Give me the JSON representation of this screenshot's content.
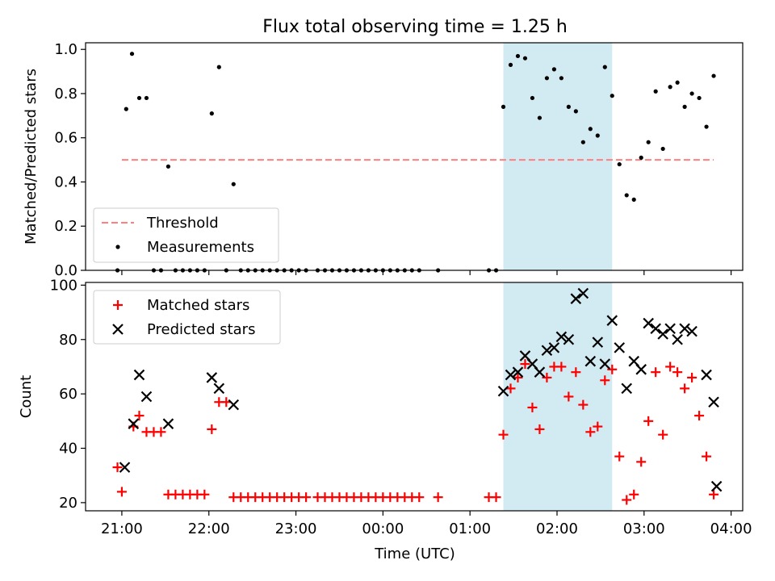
{
  "title": "Flux total observing time = 1.25 h",
  "chart_data": [
    {
      "type": "scatter",
      "panel": "top",
      "ylabel": "Matched/Predicted stars",
      "xlim": [
        "20:35",
        "04:08"
      ],
      "ylim": [
        0,
        1.03
      ],
      "yticks": [
        0.0,
        0.2,
        0.4,
        0.6,
        0.8,
        1.0
      ],
      "ytick_labels": [
        "0.0",
        "0.2",
        "0.4",
        "0.6",
        "0.8",
        "1.0"
      ],
      "grid": false,
      "legend_position": "lower-left",
      "shaded_interval": {
        "start": "01:23",
        "end": "02:38",
        "color": "#add8e6"
      },
      "threshold": {
        "name": "Threshold",
        "value": 0.5,
        "x_start": "21:00",
        "x_end": "03:48",
        "color": "#ff7f7f"
      },
      "series": [
        {
          "name": "Measurements",
          "color": "#000000",
          "points": [
            [
              "20:57",
              0
            ],
            [
              "21:03",
              0.73
            ],
            [
              "21:07",
              0.98
            ],
            [
              "21:12",
              0.78
            ],
            [
              "21:17",
              0.78
            ],
            [
              "21:22",
              0
            ],
            [
              "21:27",
              0
            ],
            [
              "21:32",
              0.47
            ],
            [
              "21:37",
              0
            ],
            [
              "21:42",
              0
            ],
            [
              "21:47",
              0
            ],
            [
              "21:52",
              0
            ],
            [
              "21:57",
              0
            ],
            [
              "22:02",
              0.71
            ],
            [
              "22:07",
              0.92
            ],
            [
              "22:12",
              0
            ],
            [
              "22:17",
              0.39
            ],
            [
              "22:22",
              0
            ],
            [
              "22:27",
              0
            ],
            [
              "22:32",
              0
            ],
            [
              "22:37",
              0
            ],
            [
              "22:42",
              0
            ],
            [
              "22:47",
              0
            ],
            [
              "22:52",
              0
            ],
            [
              "22:57",
              0
            ],
            [
              "23:02",
              0
            ],
            [
              "23:07",
              0
            ],
            [
              "23:15",
              0
            ],
            [
              "23:20",
              0
            ],
            [
              "23:25",
              0
            ],
            [
              "23:30",
              0
            ],
            [
              "23:35",
              0
            ],
            [
              "23:40",
              0
            ],
            [
              "23:45",
              0
            ],
            [
              "23:50",
              0
            ],
            [
              "23:55",
              0
            ],
            [
              "00:00",
              0
            ],
            [
              "00:05",
              0
            ],
            [
              "00:10",
              0
            ],
            [
              "00:15",
              0
            ],
            [
              "00:20",
              0
            ],
            [
              "00:25",
              0
            ],
            [
              "00:38",
              0
            ],
            [
              "01:13",
              0
            ],
            [
              "01:18",
              0
            ],
            [
              "01:23",
              0.74
            ],
            [
              "01:28",
              0.93
            ],
            [
              "01:33",
              0.97
            ],
            [
              "01:38",
              0.96
            ],
            [
              "01:43",
              0.78
            ],
            [
              "01:48",
              0.69
            ],
            [
              "01:53",
              0.87
            ],
            [
              "01:58",
              0.91
            ],
            [
              "02:03",
              0.87
            ],
            [
              "02:08",
              0.74
            ],
            [
              "02:13",
              0.72
            ],
            [
              "02:18",
              0.58
            ],
            [
              "02:23",
              0.64
            ],
            [
              "02:28",
              0.61
            ],
            [
              "02:33",
              0.92
            ],
            [
              "02:38",
              0.79
            ],
            [
              "02:43",
              0.48
            ],
            [
              "02:48",
              0.34
            ],
            [
              "02:53",
              0.32
            ],
            [
              "02:58",
              0.51
            ],
            [
              "03:03",
              0.58
            ],
            [
              "03:08",
              0.81
            ],
            [
              "03:13",
              0.55
            ],
            [
              "03:18",
              0.83
            ],
            [
              "03:23",
              0.85
            ],
            [
              "03:28",
              0.74
            ],
            [
              "03:33",
              0.8
            ],
            [
              "03:38",
              0.78
            ],
            [
              "03:43",
              0.65
            ],
            [
              "03:48",
              0.88
            ]
          ]
        }
      ]
    },
    {
      "type": "scatter",
      "panel": "bottom",
      "xlabel": "Time (UTC)",
      "ylabel": "Count",
      "xlim": [
        "20:35",
        "04:08"
      ],
      "ylim": [
        17,
        101
      ],
      "xticks": [
        "21:00",
        "22:00",
        "23:00",
        "00:00",
        "01:00",
        "02:00",
        "03:00",
        "04:00"
      ],
      "yticks": [
        20,
        40,
        60,
        80,
        100
      ],
      "grid": false,
      "legend_position": "upper-left",
      "shaded_interval": {
        "start": "01:23",
        "end": "02:38",
        "color": "#add8e6"
      },
      "series": [
        {
          "name": "Matched stars",
          "marker": "plus",
          "color": "#ff0000",
          "points": [
            [
              "20:57",
              33
            ],
            [
              "21:00",
              24
            ],
            [
              "21:08",
              48
            ],
            [
              "21:12",
              52
            ],
            [
              "21:17",
              46
            ],
            [
              "21:22",
              46
            ],
            [
              "21:27",
              46
            ],
            [
              "21:32",
              23
            ],
            [
              "21:37",
              23
            ],
            [
              "21:42",
              23
            ],
            [
              "21:47",
              23
            ],
            [
              "21:52",
              23
            ],
            [
              "21:57",
              23
            ],
            [
              "22:02",
              47
            ],
            [
              "22:07",
              57
            ],
            [
              "22:12",
              57
            ],
            [
              "22:17",
              22
            ],
            [
              "22:22",
              22
            ],
            [
              "22:27",
              22
            ],
            [
              "22:32",
              22
            ],
            [
              "22:37",
              22
            ],
            [
              "22:42",
              22
            ],
            [
              "22:47",
              22
            ],
            [
              "22:52",
              22
            ],
            [
              "22:57",
              22
            ],
            [
              "23:02",
              22
            ],
            [
              "23:07",
              22
            ],
            [
              "23:15",
              22
            ],
            [
              "23:20",
              22
            ],
            [
              "23:25",
              22
            ],
            [
              "23:30",
              22
            ],
            [
              "23:35",
              22
            ],
            [
              "23:40",
              22
            ],
            [
              "23:45",
              22
            ],
            [
              "23:50",
              22
            ],
            [
              "23:55",
              22
            ],
            [
              "00:00",
              22
            ],
            [
              "00:05",
              22
            ],
            [
              "00:10",
              22
            ],
            [
              "00:15",
              22
            ],
            [
              "00:20",
              22
            ],
            [
              "00:25",
              22
            ],
            [
              "00:38",
              22
            ],
            [
              "01:13",
              22
            ],
            [
              "01:18",
              22
            ],
            [
              "01:23",
              45
            ],
            [
              "01:28",
              62
            ],
            [
              "01:33",
              66
            ],
            [
              "01:38",
              71
            ],
            [
              "01:43",
              55
            ],
            [
              "01:48",
              47
            ],
            [
              "01:53",
              66
            ],
            [
              "01:58",
              70
            ],
            [
              "02:03",
              70
            ],
            [
              "02:08",
              59
            ],
            [
              "02:13",
              68
            ],
            [
              "02:18",
              56
            ],
            [
              "02:23",
              46
            ],
            [
              "02:28",
              48
            ],
            [
              "02:33",
              65
            ],
            [
              "02:38",
              69
            ],
            [
              "02:43",
              37
            ],
            [
              "02:48",
              21
            ],
            [
              "02:53",
              23
            ],
            [
              "02:58",
              35
            ],
            [
              "03:03",
              50
            ],
            [
              "03:08",
              68
            ],
            [
              "03:13",
              45
            ],
            [
              "03:18",
              70
            ],
            [
              "03:23",
              68
            ],
            [
              "03:28",
              62
            ],
            [
              "03:33",
              66
            ],
            [
              "03:38",
              52
            ],
            [
              "03:43",
              37
            ],
            [
              "03:48",
              23
            ]
          ]
        },
        {
          "name": "Predicted stars",
          "marker": "x",
          "color": "#000000",
          "points": [
            [
              "21:02",
              33
            ],
            [
              "21:08",
              49
            ],
            [
              "21:12",
              67
            ],
            [
              "21:17",
              59
            ],
            [
              "21:32",
              49
            ],
            [
              "22:02",
              66
            ],
            [
              "22:07",
              62
            ],
            [
              "22:17",
              56
            ],
            [
              "01:23",
              61
            ],
            [
              "01:28",
              67
            ],
            [
              "01:33",
              68
            ],
            [
              "01:38",
              74
            ],
            [
              "01:43",
              71
            ],
            [
              "01:48",
              68
            ],
            [
              "01:53",
              76
            ],
            [
              "01:58",
              77
            ],
            [
              "02:03",
              81
            ],
            [
              "02:08",
              80
            ],
            [
              "02:13",
              95
            ],
            [
              "02:18",
              97
            ],
            [
              "02:23",
              72
            ],
            [
              "02:28",
              79
            ],
            [
              "02:33",
              71
            ],
            [
              "02:38",
              87
            ],
            [
              "02:43",
              77
            ],
            [
              "02:48",
              62
            ],
            [
              "02:53",
              72
            ],
            [
              "02:58",
              69
            ],
            [
              "03:03",
              86
            ],
            [
              "03:08",
              84
            ],
            [
              "03:13",
              82
            ],
            [
              "03:18",
              84
            ],
            [
              "03:23",
              80
            ],
            [
              "03:28",
              84
            ],
            [
              "03:33",
              83
            ],
            [
              "03:43",
              67
            ],
            [
              "03:48",
              57
            ],
            [
              "03:50",
              26
            ]
          ]
        }
      ]
    }
  ]
}
